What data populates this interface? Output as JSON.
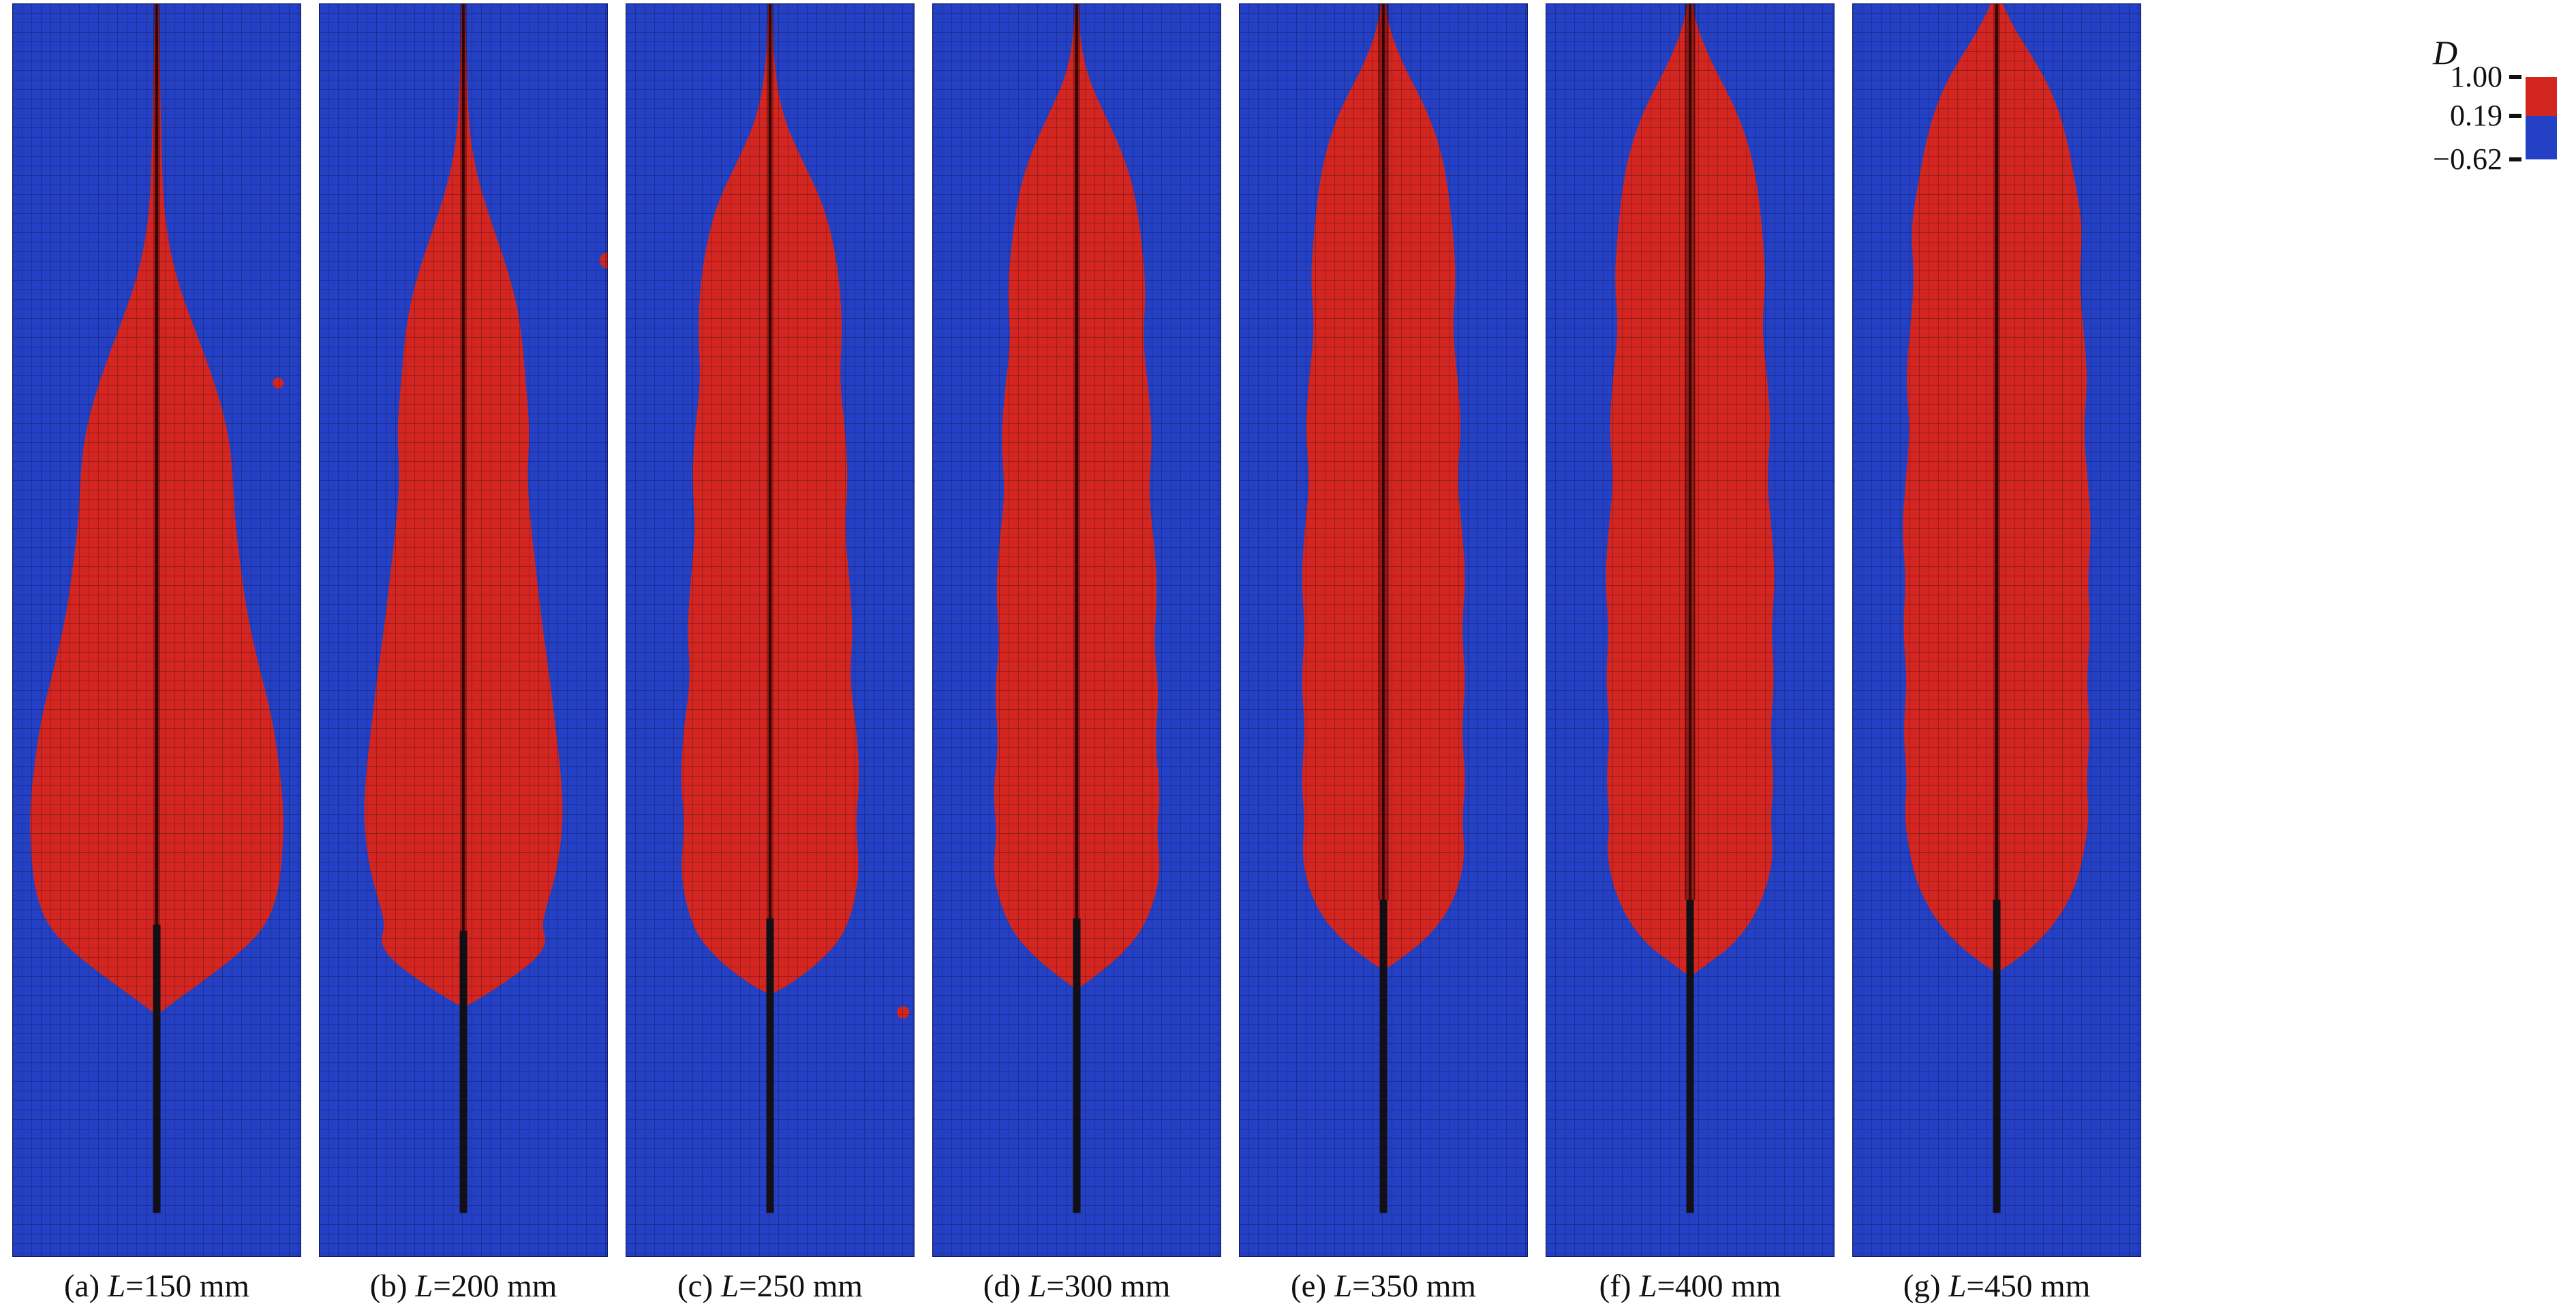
{
  "chart_data": {
    "type": "heatmap",
    "title": "",
    "description": "Seven finite-element damage contour panels (damage variable D) for specimens of different lengths L; red = damaged zone around central vertical crack, blue = undamaged mesh; colorbar legend at right.",
    "variable": "D",
    "legend": {
      "title": "D",
      "tick_labels": [
        "1.00",
        "0.19",
        "−0.62"
      ],
      "tick_values": [
        1.0,
        0.19,
        -0.62
      ],
      "segments": [
        {
          "color": "#d42620",
          "range": [
            0.19,
            1.0
          ]
        },
        {
          "color": "#2440c4",
          "range": [
            -0.62,
            0.19
          ]
        }
      ],
      "position": "top-right"
    },
    "colors": {
      "damage": "#d42620",
      "field": "#2440c4",
      "mesh_line": "rgba(10,5,25,0.45)",
      "crack": "#121014"
    },
    "panels": [
      {
        "id": "a",
        "L_mm": 150,
        "caption": "(a) L=150 mm",
        "caption_prefix": "(a) ",
        "caption_var": "L",
        "caption_rest": "=150 mm",
        "crack_tip": 0.735,
        "notch_bottom": 0.965,
        "double_line": false,
        "outline": [
          [
            0,
            0.006
          ],
          [
            0.04,
            0.01
          ],
          [
            0.08,
            0.013
          ],
          [
            0.12,
            0.017
          ],
          [
            0.16,
            0.024
          ],
          [
            0.19,
            0.04
          ],
          [
            0.22,
            0.07
          ],
          [
            0.25,
            0.115
          ],
          [
            0.28,
            0.165
          ],
          [
            0.31,
            0.21
          ],
          [
            0.34,
            0.245
          ],
          [
            0.37,
            0.262
          ],
          [
            0.41,
            0.27
          ],
          [
            0.45,
            0.29
          ],
          [
            0.49,
            0.315
          ],
          [
            0.53,
            0.355
          ],
          [
            0.57,
            0.4
          ],
          [
            0.61,
            0.425
          ],
          [
            0.645,
            0.44
          ],
          [
            0.68,
            0.435
          ],
          [
            0.71,
            0.42
          ],
          [
            0.735,
            0.38
          ],
          [
            0.755,
            0.3
          ],
          [
            0.775,
            0.19
          ],
          [
            0.79,
            0.1
          ],
          [
            0.8,
            0.04
          ],
          [
            0.806,
            0.008
          ]
        ],
        "spots": [
          [
            0.92,
            0.303,
            8
          ]
        ]
      },
      {
        "id": "b",
        "L_mm": 200,
        "caption": "(b) L=200 mm",
        "caption_prefix": "(b) ",
        "caption_var": "L",
        "caption_rest": "=200 mm",
        "crack_tip": 0.74,
        "notch_bottom": 0.965,
        "double_line": false,
        "outline": [
          [
            0,
            0.006
          ],
          [
            0.04,
            0.01
          ],
          [
            0.08,
            0.015
          ],
          [
            0.11,
            0.025
          ],
          [
            0.14,
            0.05
          ],
          [
            0.17,
            0.09
          ],
          [
            0.2,
            0.135
          ],
          [
            0.23,
            0.175
          ],
          [
            0.26,
            0.2
          ],
          [
            0.3,
            0.215
          ],
          [
            0.34,
            0.23
          ],
          [
            0.38,
            0.22
          ],
          [
            0.42,
            0.235
          ],
          [
            0.46,
            0.255
          ],
          [
            0.5,
            0.275
          ],
          [
            0.54,
            0.3
          ],
          [
            0.58,
            0.32
          ],
          [
            0.62,
            0.34
          ],
          [
            0.655,
            0.345
          ],
          [
            0.69,
            0.325
          ],
          [
            0.715,
            0.295
          ],
          [
            0.735,
            0.27
          ],
          [
            0.75,
            0.29
          ],
          [
            0.765,
            0.24
          ],
          [
            0.78,
            0.15
          ],
          [
            0.792,
            0.07
          ],
          [
            0.8,
            0.01
          ]
        ],
        "spots": [
          [
            1.0,
            0.205,
            12
          ]
        ]
      },
      {
        "id": "c",
        "L_mm": 250,
        "caption": "(c) L=250 mm",
        "caption_prefix": "(c) ",
        "caption_var": "L",
        "caption_rest": "=250 mm",
        "crack_tip": 0.73,
        "notch_bottom": 0.965,
        "double_line": false,
        "outline": [
          [
            0,
            0.006
          ],
          [
            0.03,
            0.01
          ],
          [
            0.06,
            0.02
          ],
          [
            0.09,
            0.045
          ],
          [
            0.12,
            0.1
          ],
          [
            0.15,
            0.165
          ],
          [
            0.18,
            0.21
          ],
          [
            0.22,
            0.24
          ],
          [
            0.26,
            0.25
          ],
          [
            0.3,
            0.24
          ],
          [
            0.34,
            0.26
          ],
          [
            0.38,
            0.27
          ],
          [
            0.42,
            0.258
          ],
          [
            0.46,
            0.275
          ],
          [
            0.5,
            0.287
          ],
          [
            0.54,
            0.275
          ],
          [
            0.58,
            0.3
          ],
          [
            0.62,
            0.31
          ],
          [
            0.655,
            0.295
          ],
          [
            0.69,
            0.31
          ],
          [
            0.72,
            0.29
          ],
          [
            0.745,
            0.25
          ],
          [
            0.765,
            0.17
          ],
          [
            0.78,
            0.085
          ],
          [
            0.79,
            0.012
          ]
        ],
        "spots": [
          [
            0.96,
            0.805,
            9
          ]
        ]
      },
      {
        "id": "d",
        "L_mm": 300,
        "caption": "(d) L=300 mm",
        "caption_prefix": "(d) ",
        "caption_var": "L",
        "caption_rest": "=300 mm",
        "crack_tip": 0.73,
        "notch_bottom": 0.965,
        "double_line": false,
        "outline": [
          [
            0,
            0.006
          ],
          [
            0.03,
            0.012
          ],
          [
            0.06,
            0.04
          ],
          [
            0.09,
            0.1
          ],
          [
            0.12,
            0.16
          ],
          [
            0.15,
            0.2
          ],
          [
            0.19,
            0.225
          ],
          [
            0.23,
            0.24
          ],
          [
            0.27,
            0.228
          ],
          [
            0.31,
            0.25
          ],
          [
            0.35,
            0.262
          ],
          [
            0.39,
            0.248
          ],
          [
            0.43,
            0.268
          ],
          [
            0.47,
            0.28
          ],
          [
            0.51,
            0.266
          ],
          [
            0.55,
            0.285
          ],
          [
            0.59,
            0.27
          ],
          [
            0.63,
            0.29
          ],
          [
            0.66,
            0.276
          ],
          [
            0.69,
            0.29
          ],
          [
            0.715,
            0.27
          ],
          [
            0.74,
            0.225
          ],
          [
            0.76,
            0.15
          ],
          [
            0.775,
            0.07
          ],
          [
            0.785,
            0.012
          ]
        ],
        "spots": []
      },
      {
        "id": "e",
        "L_mm": 350,
        "caption": "(e) L=350 mm",
        "caption_prefix": "(e) ",
        "caption_var": "L",
        "caption_rest": "=350 mm",
        "crack_tip": 0.715,
        "notch_bottom": 0.965,
        "double_line": true,
        "outline": [
          [
            0,
            0.008
          ],
          [
            0.02,
            0.02
          ],
          [
            0.05,
            0.07
          ],
          [
            0.08,
            0.14
          ],
          [
            0.11,
            0.19
          ],
          [
            0.14,
            0.22
          ],
          [
            0.18,
            0.24
          ],
          [
            0.22,
            0.252
          ],
          [
            0.26,
            0.238
          ],
          [
            0.3,
            0.258
          ],
          [
            0.34,
            0.27
          ],
          [
            0.38,
            0.255
          ],
          [
            0.42,
            0.272
          ],
          [
            0.46,
            0.285
          ],
          [
            0.5,
            0.27
          ],
          [
            0.54,
            0.285
          ],
          [
            0.58,
            0.27
          ],
          [
            0.62,
            0.285
          ],
          [
            0.65,
            0.272
          ],
          [
            0.68,
            0.282
          ],
          [
            0.705,
            0.26
          ],
          [
            0.728,
            0.215
          ],
          [
            0.748,
            0.14
          ],
          [
            0.762,
            0.06
          ],
          [
            0.77,
            0.012
          ]
        ],
        "spots": []
      },
      {
        "id": "f",
        "L_mm": 400,
        "caption": "(f) L=400 mm",
        "caption_prefix": "(f) ",
        "caption_var": "L",
        "caption_rest": "=400 mm",
        "crack_tip": 0.715,
        "notch_bottom": 0.965,
        "double_line": true,
        "outline": [
          [
            0,
            0.008
          ],
          [
            0.02,
            0.025
          ],
          [
            0.05,
            0.08
          ],
          [
            0.08,
            0.15
          ],
          [
            0.11,
            0.2
          ],
          [
            0.14,
            0.23
          ],
          [
            0.18,
            0.25
          ],
          [
            0.22,
            0.262
          ],
          [
            0.26,
            0.248
          ],
          [
            0.3,
            0.268
          ],
          [
            0.34,
            0.28
          ],
          [
            0.38,
            0.265
          ],
          [
            0.42,
            0.282
          ],
          [
            0.46,
            0.295
          ],
          [
            0.5,
            0.28
          ],
          [
            0.54,
            0.292
          ],
          [
            0.58,
            0.277
          ],
          [
            0.62,
            0.29
          ],
          [
            0.65,
            0.278
          ],
          [
            0.68,
            0.288
          ],
          [
            0.705,
            0.265
          ],
          [
            0.73,
            0.22
          ],
          [
            0.752,
            0.145
          ],
          [
            0.766,
            0.06
          ],
          [
            0.775,
            0.012
          ]
        ],
        "spots": []
      },
      {
        "id": "g",
        "L_mm": 450,
        "caption": "(g) L=450 mm",
        "caption_prefix": "(g) ",
        "caption_var": "L",
        "caption_rest": "=450 mm",
        "crack_tip": 0.715,
        "notch_bottom": 0.965,
        "double_line": false,
        "outline": [
          [
            0,
            0.02
          ],
          [
            0.02,
            0.06
          ],
          [
            0.045,
            0.13
          ],
          [
            0.07,
            0.19
          ],
          [
            0.1,
            0.235
          ],
          [
            0.14,
            0.27
          ],
          [
            0.18,
            0.298
          ],
          [
            0.22,
            0.285
          ],
          [
            0.26,
            0.3
          ],
          [
            0.3,
            0.315
          ],
          [
            0.34,
            0.3
          ],
          [
            0.38,
            0.315
          ],
          [
            0.42,
            0.328
          ],
          [
            0.46,
            0.314
          ],
          [
            0.5,
            0.325
          ],
          [
            0.54,
            0.31
          ],
          [
            0.58,
            0.324
          ],
          [
            0.62,
            0.31
          ],
          [
            0.65,
            0.32
          ],
          [
            0.68,
            0.3
          ],
          [
            0.705,
            0.272
          ],
          [
            0.73,
            0.215
          ],
          [
            0.752,
            0.13
          ],
          [
            0.765,
            0.055
          ],
          [
            0.772,
            0.012
          ]
        ],
        "spots": []
      }
    ]
  }
}
